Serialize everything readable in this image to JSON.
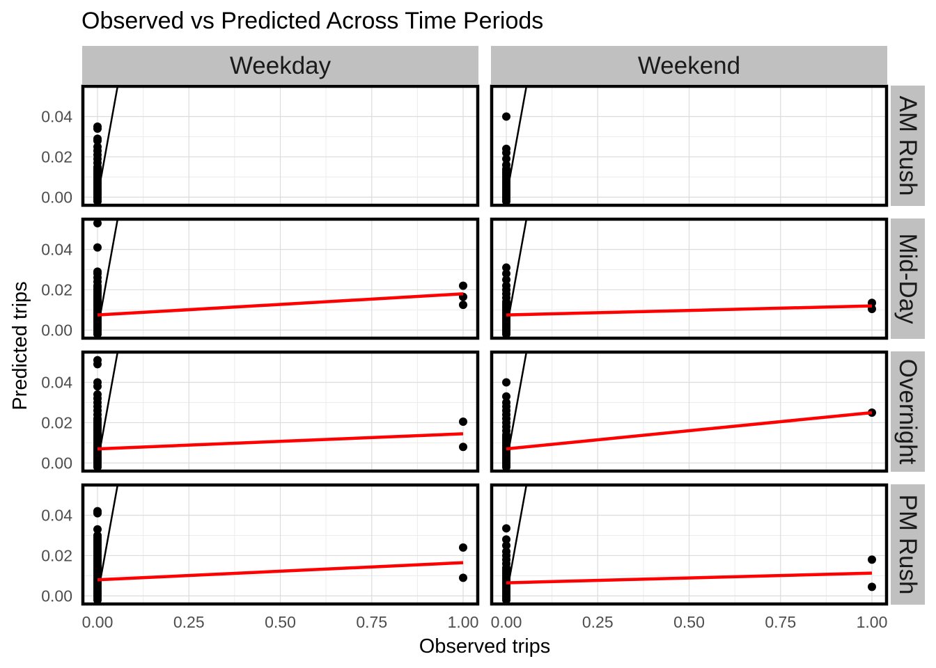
{
  "chart_data": {
    "type": "scatter",
    "title": "Observed vs Predicted Across Time Periods",
    "xlabel": "Observed trips",
    "ylabel": "Predicted trips",
    "xlim": [
      -0.04,
      1.04
    ],
    "ylim": [
      -0.004,
      0.055
    ],
    "x_ticks": [
      "0.00",
      "0.25",
      "0.50",
      "0.75",
      "1.00"
    ],
    "x_tick_values": [
      0,
      0.25,
      0.5,
      0.75,
      1.0
    ],
    "y_ticks": [
      "0.00",
      "0.02",
      "0.04"
    ],
    "y_tick_values": [
      0,
      0.02,
      0.04
    ],
    "columns": [
      "Weekday",
      "Weekend"
    ],
    "rows": [
      "AM Rush",
      "Mid-Day",
      "Overnight",
      "PM Rush"
    ],
    "grid": true,
    "reference_line": {
      "type": "y=x",
      "color": "#000000"
    },
    "fit_color": "#ff0000",
    "point_color": "#000000",
    "panels": [
      {
        "row": "AM Rush",
        "col": "Weekday",
        "zero_points": [
          0.035,
          0.034,
          0.029,
          0.028,
          0.025,
          0.023,
          0.021,
          0.019,
          0.017,
          0.015,
          0.014,
          0.013,
          0.012,
          0.011,
          0.01,
          0.009,
          0.008,
          0.007,
          0.006,
          0.005,
          0.004,
          0.003,
          0.002,
          0.001,
          0.0,
          -0.001,
          -0.002
        ],
        "one_points": [],
        "fit": null
      },
      {
        "row": "AM Rush",
        "col": "Weekend",
        "zero_points": [
          0.04,
          0.024,
          0.022,
          0.019,
          0.016,
          0.014,
          0.013,
          0.012,
          0.011,
          0.01,
          0.009,
          0.008,
          0.007,
          0.006,
          0.005,
          0.004,
          0.003,
          0.002,
          0.001,
          0.0,
          -0.001,
          -0.002
        ],
        "one_points": [],
        "fit": null
      },
      {
        "row": "Mid-Day",
        "col": "Weekday",
        "zero_points": [
          0.053,
          0.041,
          0.029,
          0.028,
          0.026,
          0.024,
          0.022,
          0.021,
          0.02,
          0.019,
          0.018,
          0.017,
          0.016,
          0.015,
          0.014,
          0.013,
          0.012,
          0.011,
          0.01,
          0.009,
          0.008,
          0.007,
          0.006,
          0.005,
          0.004,
          0.003,
          0.002,
          0.001,
          0.0,
          -0.001,
          -0.002
        ],
        "one_points": [
          0.022,
          0.0165,
          0.0125
        ],
        "fit": [
          0.0075,
          0.018
        ]
      },
      {
        "row": "Mid-Day",
        "col": "Weekend",
        "zero_points": [
          0.031,
          0.028,
          0.025,
          0.022,
          0.02,
          0.018,
          0.016,
          0.014,
          0.013,
          0.012,
          0.011,
          0.01,
          0.009,
          0.008,
          0.007,
          0.006,
          0.005,
          0.004,
          0.003,
          0.002,
          0.001,
          0.0,
          -0.001,
          -0.002
        ],
        "one_points": [
          0.0135,
          0.0105
        ],
        "fit": [
          0.0075,
          0.012
        ]
      },
      {
        "row": "Overnight",
        "col": "Weekday",
        "zero_points": [
          0.051,
          0.049,
          0.04,
          0.038,
          0.034,
          0.032,
          0.03,
          0.028,
          0.026,
          0.024,
          0.022,
          0.021,
          0.02,
          0.019,
          0.018,
          0.017,
          0.016,
          0.015,
          0.014,
          0.013,
          0.012,
          0.011,
          0.01,
          0.009,
          0.008,
          0.007,
          0.006,
          0.005,
          0.004,
          0.003,
          0.002,
          0.001,
          0.0,
          -0.001,
          -0.002
        ],
        "one_points": [
          0.0205,
          0.008
        ],
        "fit": [
          0.007,
          0.0145
        ]
      },
      {
        "row": "Overnight",
        "col": "Weekend",
        "zero_points": [
          0.04,
          0.033,
          0.03,
          0.028,
          0.026,
          0.024,
          0.022,
          0.02,
          0.018,
          0.016,
          0.014,
          0.013,
          0.012,
          0.011,
          0.01,
          0.009,
          0.008,
          0.007,
          0.006,
          0.005,
          0.004,
          0.003,
          0.002,
          0.001,
          0.0,
          -0.001,
          -0.002
        ],
        "one_points": [
          0.025
        ],
        "fit": [
          0.007,
          0.025
        ]
      },
      {
        "row": "PM Rush",
        "col": "Weekday",
        "zero_points": [
          0.042,
          0.041,
          0.033,
          0.03,
          0.029,
          0.028,
          0.027,
          0.026,
          0.025,
          0.024,
          0.023,
          0.022,
          0.021,
          0.02,
          0.019,
          0.018,
          0.017,
          0.016,
          0.015,
          0.014,
          0.013,
          0.012,
          0.011,
          0.01,
          0.009,
          0.008,
          0.007,
          0.006,
          0.005,
          0.004,
          0.003,
          0.002,
          0.001,
          0.0,
          -0.001,
          -0.002
        ],
        "one_points": [
          0.024,
          0.009
        ],
        "fit": [
          0.008,
          0.0165
        ]
      },
      {
        "row": "PM Rush",
        "col": "Weekend",
        "zero_points": [
          0.0335,
          0.028,
          0.025,
          0.022,
          0.02,
          0.018,
          0.016,
          0.014,
          0.013,
          0.012,
          0.011,
          0.01,
          0.009,
          0.008,
          0.007,
          0.006,
          0.005,
          0.004,
          0.003,
          0.002,
          0.001,
          0.0,
          -0.001,
          -0.002
        ],
        "one_points": [
          0.018,
          0.0045
        ],
        "fit": [
          0.0065,
          0.0113
        ]
      }
    ]
  }
}
